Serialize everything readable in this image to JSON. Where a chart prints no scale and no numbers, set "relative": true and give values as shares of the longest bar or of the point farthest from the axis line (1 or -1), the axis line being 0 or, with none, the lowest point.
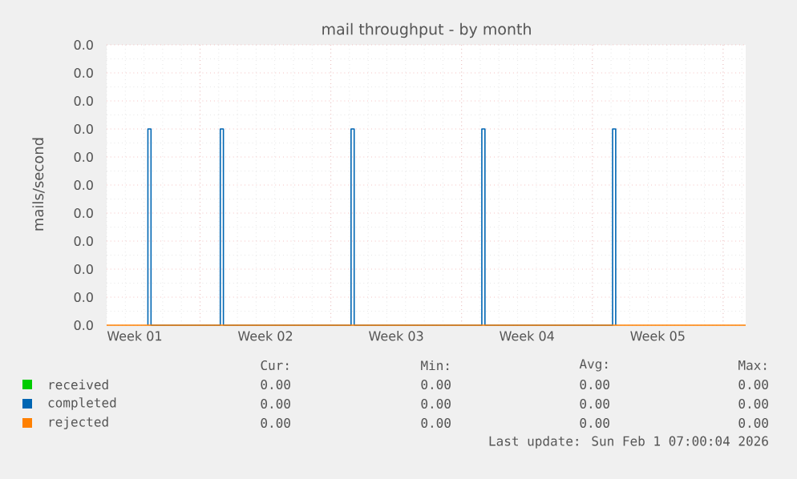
{
  "chart_data": {
    "type": "line",
    "title": "mail throughput - by month",
    "ylabel": "mails/second",
    "relative": true,
    "xlim": [
      "2025-12-29T02:00",
      "2026-02-01T07:00"
    ],
    "xticks": [
      {
        "value": "2025-12-30T14:00",
        "label": "Week 01"
      },
      {
        "value": "2026-01-06T14:00",
        "label": "Week 02"
      },
      {
        "value": "2026-01-13T14:00",
        "label": "Week 03"
      },
      {
        "value": "2026-01-20T14:00",
        "label": "Week 04"
      },
      {
        "value": "2026-01-27T14:00",
        "label": "Week 05"
      },
      {
        "value": "2026-01-03T02:00",
        "label": null
      },
      {
        "value": "2026-01-10T02:00",
        "label": null
      },
      {
        "value": "2026-01-17T02:00",
        "label": null
      },
      {
        "value": "2026-01-24T02:00",
        "label": null
      },
      {
        "value": "2026-01-31T02:00",
        "label": null
      }
    ],
    "grid": true,
    "legend": "bottom",
    "series": [
      {
        "name": "received",
        "color": "#00cc00"
      },
      {
        "name": "completed",
        "color": "#0066b3",
        "x": [
          "2025-12-31T07:00",
          "2025-12-31T07:00",
          "2025-12-31T11:00",
          "2025-12-31T11:00",
          "2026-01-04T04:00",
          "2026-01-04T04:00",
          "2026-01-04T08:00",
          "2026-01-04T08:00",
          "2026-01-11T04:00",
          "2026-01-11T04:00",
          "2026-01-11T08:00",
          "2026-01-11T08:00",
          "2026-01-18T04:00",
          "2026-01-18T04:00",
          "2026-01-18T08:00",
          "2026-01-18T08:00",
          "2026-01-25T04:00",
          "2026-01-25T04:00",
          "2026-01-25T08:00",
          "2026-01-25T08:00"
        ],
        "values": [
          0,
          1,
          1,
          0,
          0,
          1,
          1,
          0,
          0,
          1,
          1,
          0,
          0,
          1,
          1,
          0,
          0,
          1,
          1,
          0
        ]
      },
      {
        "name": "rejected",
        "color": "#ff8000",
        "x": [
          "2025-12-29T02:00",
          "2026-02-01T07:00"
        ],
        "values": [
          0,
          0
        ]
      }
    ],
    "annotations": [
      "0.0",
      "0.0",
      "0.0",
      "0.0",
      "0.0",
      "0.0",
      "0.0",
      "0.0",
      "0.0",
      "0.0",
      "0.0",
      "Cur:",
      "Min:",
      "Avg:",
      "Max:",
      "0.00",
      "0.00",
      "0.00",
      "0.00",
      "0.00",
      "0.00",
      "0.00",
      "0.00",
      "0.00",
      "0.00",
      "0.00",
      "0.00",
      "Last update: Sun Feb  1 07:00:04 2026"
    ]
  }
}
